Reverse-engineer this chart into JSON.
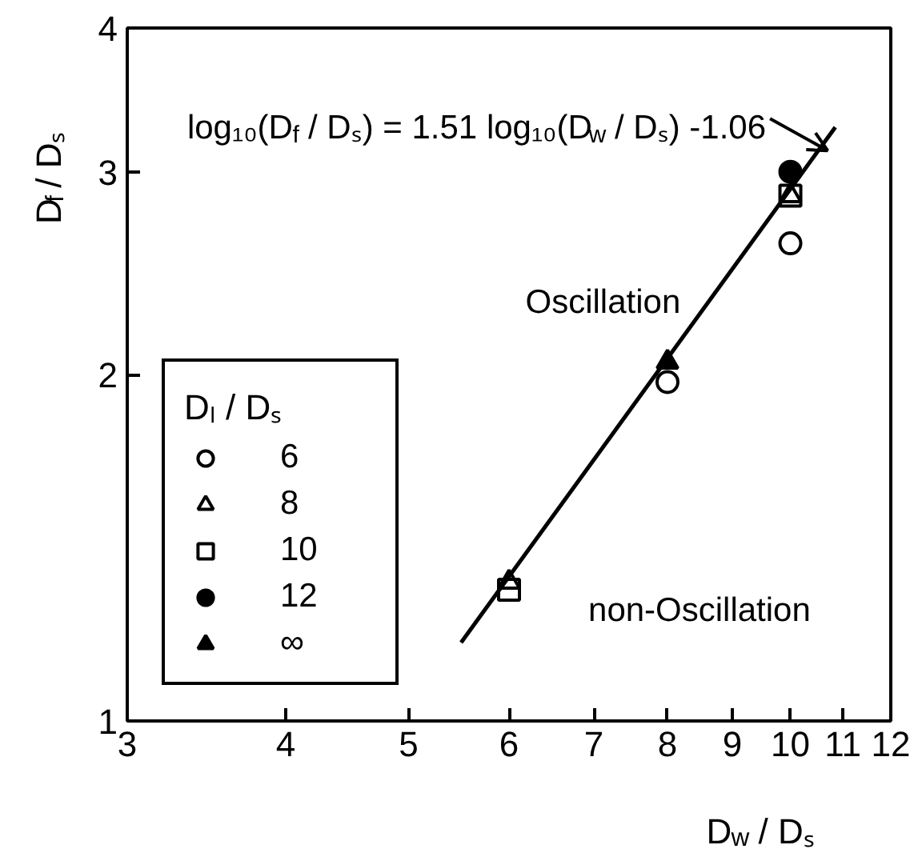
{
  "chart_data": {
    "type": "scatter",
    "xlabel": "D$_{w}$ / Dₛ",
    "ylabel": "D$_{f}$ / Dₛ",
    "legend_title": "Dₗ / Dₛ",
    "log": "xy",
    "xlim": [
      3,
      12
    ],
    "ylim": [
      1,
      4
    ],
    "xticks": [
      3,
      4,
      5,
      6,
      7,
      8,
      9,
      10,
      11,
      12
    ],
    "yticks": [
      1,
      2,
      3,
      4
    ],
    "grid": false,
    "legend": "bottom left",
    "series": [
      {
        "name": "6",
        "color": "#000000",
        "marker": "circle",
        "x": [
          8,
          10
        ],
        "values": [
          1.97,
          2.6
        ]
      },
      {
        "name": "8",
        "color": "#000000",
        "marker": "triangle",
        "x": [
          6,
          10
        ],
        "values": [
          1.32,
          2.86
        ]
      },
      {
        "name": "10",
        "color": "#000000",
        "marker": "square",
        "x": [
          6,
          10
        ],
        "values": [
          1.3,
          2.86
        ]
      },
      {
        "name": "12",
        "color": "#000000",
        "marker": "circle",
        "x": [
          10
        ],
        "values": [
          3.0
        ]
      },
      {
        "name": "∞",
        "color": "#000000",
        "marker": "triangle",
        "x": [
          8
        ],
        "values": [
          2.05
        ]
      },
      {
        "type": "line",
        "color": "#000000",
        "marker": "none",
        "line_style": "solid",
        "x": [
          5.5,
          10.85
        ],
        "values": [
          1.17,
          3.28
        ]
      }
    ],
    "annotations": [
      {
        "text": "log₁₀(D$_{f}$ / Dₛ) = 1.51 log₁₀(D$_{w}$ / Dₛ) -1.06",
        "x": 10.7,
        "y": 3.13
      },
      "Oscillation",
      "non-Oscillation"
    ]
  }
}
